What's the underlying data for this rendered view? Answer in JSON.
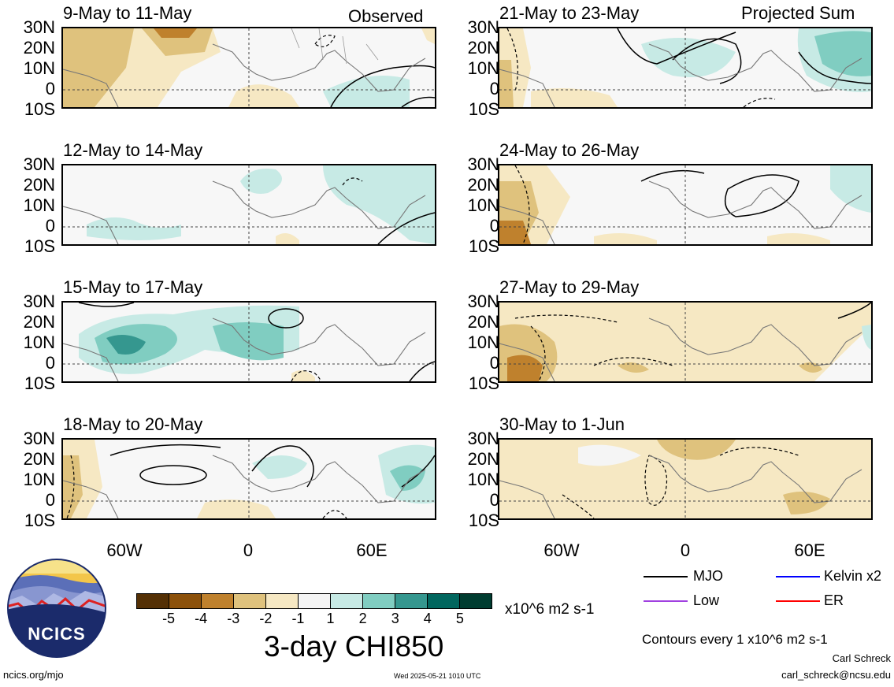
{
  "panels": [
    {
      "title": "9-May to 11-May",
      "tag": "Observed"
    },
    {
      "title": "12-May to 14-May",
      "tag": ""
    },
    {
      "title": "15-May to 17-May",
      "tag": ""
    },
    {
      "title": "18-May to 20-May",
      "tag": ""
    },
    {
      "title": "21-May to 23-May",
      "tag": "Projected Sum"
    },
    {
      "title": "24-May to 26-May",
      "tag": ""
    },
    {
      "title": "27-May to 29-May",
      "tag": ""
    },
    {
      "title": "30-May to 1-Jun",
      "tag": ""
    }
  ],
  "lat_labels": [
    "30N",
    "20N",
    "10N",
    "0",
    "10S"
  ],
  "lon_labels": [
    "60W",
    "0",
    "60E"
  ],
  "colorbar": {
    "labels": [
      "-5",
      "-4",
      "-3",
      "-2",
      "-1",
      "1",
      "2",
      "3",
      "4",
      "5"
    ],
    "colors": [
      "#543005",
      "#8c510a",
      "#bf812d",
      "#dfc27d",
      "#f6e8c3",
      "#f5f5f5",
      "#c7eae5",
      "#80cdc1",
      "#35978f",
      "#01665e",
      "#003c30"
    ],
    "units": "x10^6 m2 s-1",
    "title": "3-day CHI850"
  },
  "legend": [
    {
      "label": "MJO",
      "color": "#000000"
    },
    {
      "label": "Kelvin x2",
      "color": "#0000ff"
    },
    {
      "label": "Low",
      "color": "#a040e0"
    },
    {
      "label": "ER",
      "color": "#ff0000"
    }
  ],
  "contour_note": "Contours every 1 x10^6 m2 s-1",
  "author": "Carl Schreck",
  "email": "carl_schreck@ncsu.edu",
  "site": "ncics.org/mjo",
  "timestamp": "Wed 2025-05-21 1010 UTC",
  "logo_text": "NCICS"
}
